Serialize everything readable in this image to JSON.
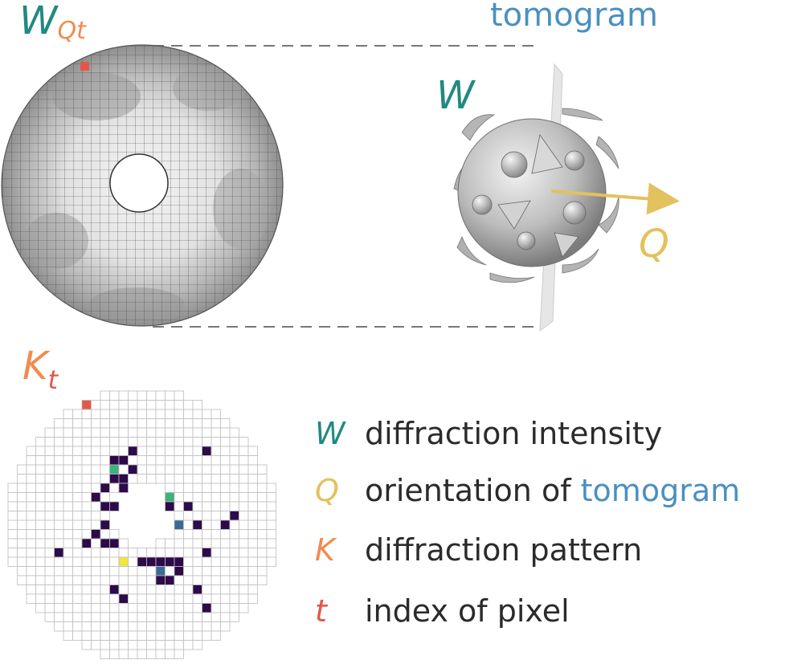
{
  "colors": {
    "teal": "#1f8a80",
    "gold": "#e3c15e",
    "orange": "#f08c4e",
    "red": "#e3574a",
    "blue": "#4a90c0",
    "text": "#2b2b2b",
    "dark_pixel": "#2d0a4a",
    "green_pixel": "#3bb37a",
    "blue_pixel": "#3a6b94",
    "yellow_pixel": "#f2e640"
  },
  "top_left": {
    "main": "W",
    "sub": "Qt"
  },
  "tomogram_title": "tomogram",
  "model_label_w": "W",
  "model_label_q": "Q",
  "bottom_left": {
    "main": "K",
    "sub": "t"
  },
  "legend": [
    {
      "symbol": "W",
      "text": "diffraction intensity",
      "highlight": ""
    },
    {
      "symbol": "Q",
      "text": "orientation of ",
      "highlight": "tomogram"
    },
    {
      "symbol": "K",
      "text": "diffraction pattern",
      "highlight": ""
    },
    {
      "symbol": "t",
      "text": "index of pixel",
      "highlight": ""
    }
  ]
}
